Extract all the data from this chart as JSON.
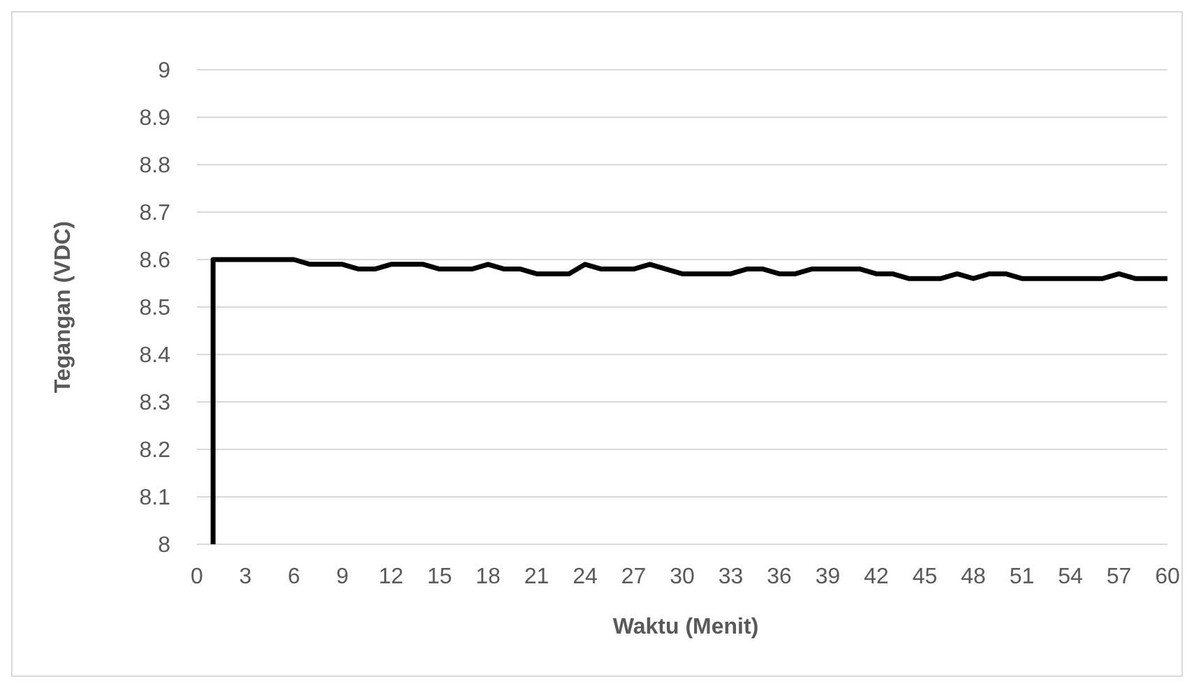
{
  "chart_data": {
    "type": "line",
    "xlabel": "Waktu (Menit)",
    "ylabel": "Tegangan (VDC)",
    "x": [
      1,
      1,
      2,
      3,
      4,
      5,
      6,
      7,
      8,
      9,
      10,
      11,
      12,
      13,
      14,
      15,
      16,
      17,
      18,
      19,
      20,
      21,
      22,
      23,
      24,
      25,
      26,
      27,
      28,
      29,
      30,
      31,
      32,
      33,
      34,
      35,
      36,
      37,
      38,
      39,
      40,
      41,
      42,
      43,
      44,
      45,
      46,
      47,
      48,
      49,
      50,
      51,
      52,
      53,
      54,
      55,
      56,
      57,
      58,
      59,
      60
    ],
    "series": [
      {
        "color": "#000000",
        "values": [
          8,
          8.6,
          8.6,
          8.6,
          8.6,
          8.6,
          8.6,
          8.59,
          8.59,
          8.59,
          8.58,
          8.58,
          8.59,
          8.59,
          8.59,
          8.58,
          8.58,
          8.58,
          8.59,
          8.58,
          8.58,
          8.57,
          8.57,
          8.57,
          8.59,
          8.58,
          8.58,
          8.58,
          8.59,
          8.58,
          8.57,
          8.57,
          8.57,
          8.57,
          8.58,
          8.58,
          8.57,
          8.57,
          8.58,
          8.58,
          8.58,
          8.58,
          8.57,
          8.57,
          8.56,
          8.56,
          8.56,
          8.57,
          8.56,
          8.57,
          8.57,
          8.56,
          8.56,
          8.56,
          8.56,
          8.56,
          8.56,
          8.57,
          8.56,
          8.56,
          8.56
        ]
      }
    ],
    "xlim": [
      0,
      60
    ],
    "xticks": [
      0,
      3,
      6,
      9,
      12,
      15,
      18,
      21,
      24,
      27,
      30,
      33,
      36,
      39,
      42,
      45,
      48,
      51,
      54,
      57,
      60
    ],
    "ylim": [
      8,
      9
    ],
    "yticks": [
      8,
      8.1,
      8.2,
      8.3,
      8.4,
      8.5,
      8.6,
      8.7,
      8.8,
      8.9,
      9
    ],
    "grid": "y",
    "marker": "none",
    "line_style": "solid"
  }
}
